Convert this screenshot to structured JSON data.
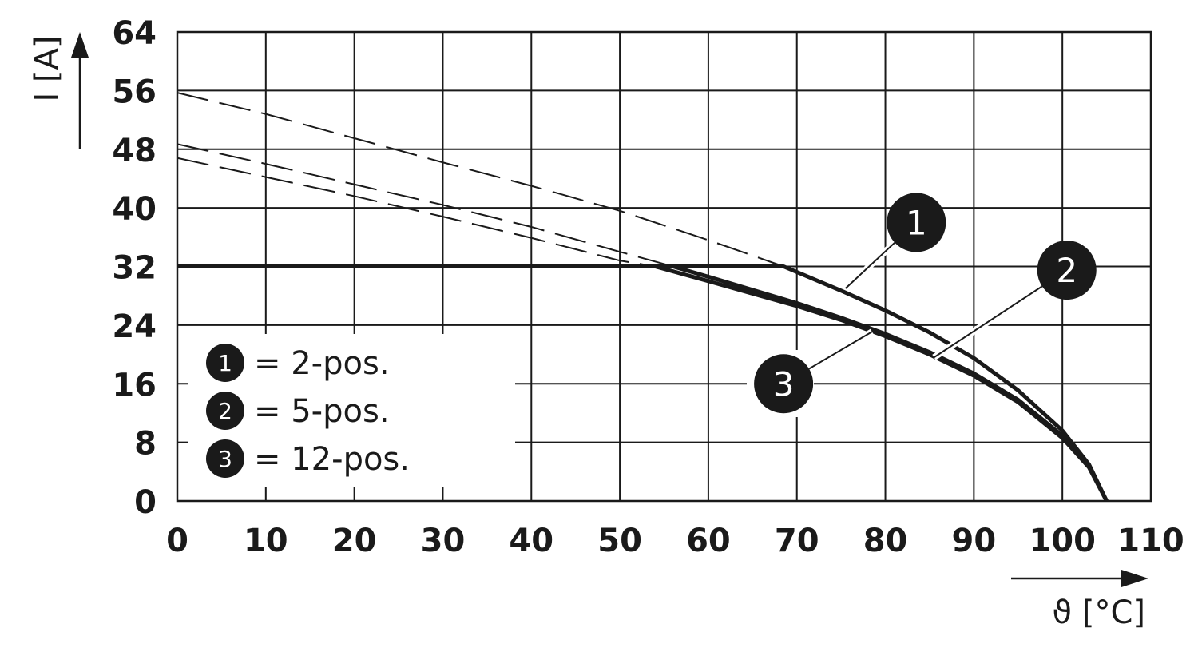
{
  "chart_data": {
    "type": "line",
    "xlabel": "ϑ [°C]",
    "ylabel": "I [A]",
    "xlim": [
      0,
      110
    ],
    "ylim": [
      0,
      64
    ],
    "xticks": [
      0,
      10,
      20,
      30,
      40,
      50,
      60,
      70,
      80,
      90,
      100,
      110
    ],
    "yticks": [
      0,
      8,
      16,
      24,
      32,
      40,
      48,
      56,
      64
    ],
    "grid": true,
    "rated_current": 32,
    "series": [
      {
        "id": "1",
        "name": "2-pos.",
        "legend_label": "= 2-pos.",
        "x": [
          0,
          10,
          20,
          30,
          40,
          50,
          60,
          68.5,
          75,
          80,
          85,
          90,
          95,
          100,
          103,
          105
        ],
        "y": [
          55.7,
          52.8,
          49.5,
          46.2,
          43.0,
          39.6,
          35.6,
          32.0,
          28.7,
          26.0,
          23.0,
          19.5,
          15.1,
          9.6,
          5.0,
          0
        ]
      },
      {
        "id": "2",
        "name": "5-pos.",
        "legend_label": "= 5-pos.",
        "x": [
          0,
          10,
          20,
          30,
          40,
          50,
          56,
          60,
          65,
          70,
          75,
          80,
          85,
          90,
          95,
          100,
          103,
          105
        ],
        "y": [
          48.7,
          46.0,
          43.2,
          40.4,
          37.4,
          34.0,
          32.0,
          30.6,
          28.8,
          27.0,
          25.0,
          22.8,
          20.3,
          17.4,
          13.8,
          8.9,
          4.8,
          0
        ]
      },
      {
        "id": "3",
        "name": "12-pos.",
        "legend_label": "= 12-pos.",
        "x": [
          0,
          10,
          20,
          30,
          40,
          50,
          54,
          60,
          65,
          70,
          75,
          80,
          85,
          90,
          95,
          100,
          103,
          105
        ],
        "y": [
          46.8,
          44.2,
          41.6,
          38.8,
          35.9,
          32.8,
          32.0,
          30.0,
          28.3,
          26.6,
          24.7,
          22.5,
          20.0,
          17.1,
          13.5,
          8.6,
          4.6,
          0
        ]
      }
    ],
    "legend": {
      "placement": "bottom-left"
    },
    "callouts": [
      {
        "id": "1",
        "label_x": 83.5,
        "label_y": 38,
        "target_x": 75.5,
        "target_y": 29.0
      },
      {
        "id": "2",
        "label_x": 100.5,
        "label_y": 31.5,
        "target_x": 85.5,
        "target_y": 19.6
      },
      {
        "id": "3",
        "label_x": 68.5,
        "label_y": 16,
        "target_x": 78.5,
        "target_y": 23.1
      }
    ]
  }
}
